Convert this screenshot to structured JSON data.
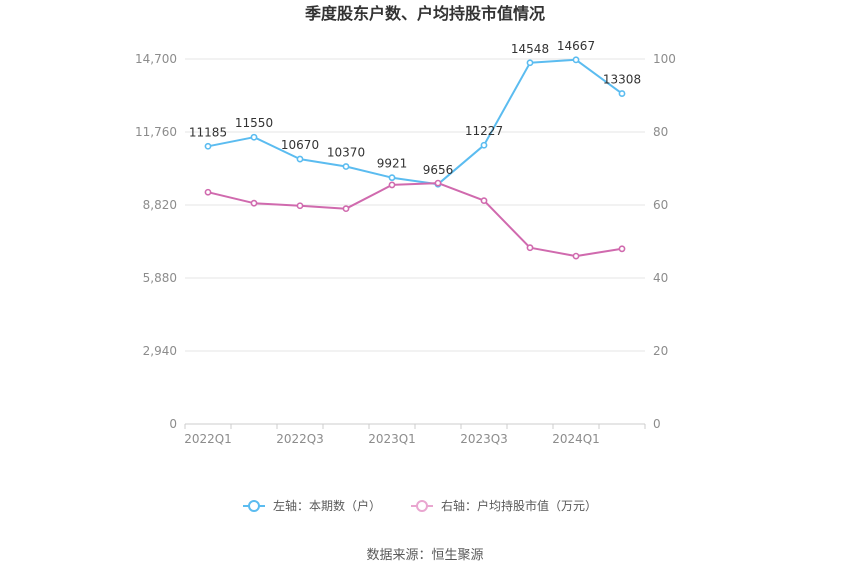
{
  "chart_data": {
    "type": "line",
    "title": "季度股东户数、户均持股市值情况",
    "x": [
      "2022Q1",
      "2022Q2",
      "2022Q3",
      "2022Q4",
      "2023Q1",
      "2023Q2",
      "2023Q3",
      "2023Q4",
      "2024Q1",
      "2024Q2"
    ],
    "x_tick_labels": [
      "2022Q1",
      "2022Q3",
      "2023Q1",
      "2023Q3",
      "2024Q1"
    ],
    "y_left": {
      "min": 0,
      "max": 14700,
      "ticks": [
        "0",
        "2,940",
        "5,880",
        "8,820",
        "11,760",
        "14,700"
      ]
    },
    "y_right": {
      "min": 0,
      "max": 100,
      "ticks": [
        "0",
        "20",
        "40",
        "60",
        "80",
        "100"
      ]
    },
    "grid": true,
    "legend_position": "bottom",
    "series": [
      {
        "name": "左轴：本期数（户）",
        "axis": "left",
        "color": "#5bbcf0",
        "values": [
          11185,
          11550,
          10670,
          10370,
          9921,
          9656,
          11227,
          14548,
          14667,
          13308
        ],
        "labels": [
          "11185",
          "11550",
          "10670",
          "10370",
          "9921",
          "9656",
          "11227",
          "14548",
          "14667",
          "13308"
        ]
      },
      {
        "name": "右轴：户均持股市值（万元）",
        "axis": "right",
        "color": "#d06aae",
        "legend_color": "#e9a6d0",
        "values": [
          63.5,
          60.5,
          59.8,
          59.0,
          65.5,
          66.0,
          61.2,
          48.3,
          46.0,
          48.0
        ]
      }
    ],
    "source": "数据来源：恒生聚源"
  }
}
